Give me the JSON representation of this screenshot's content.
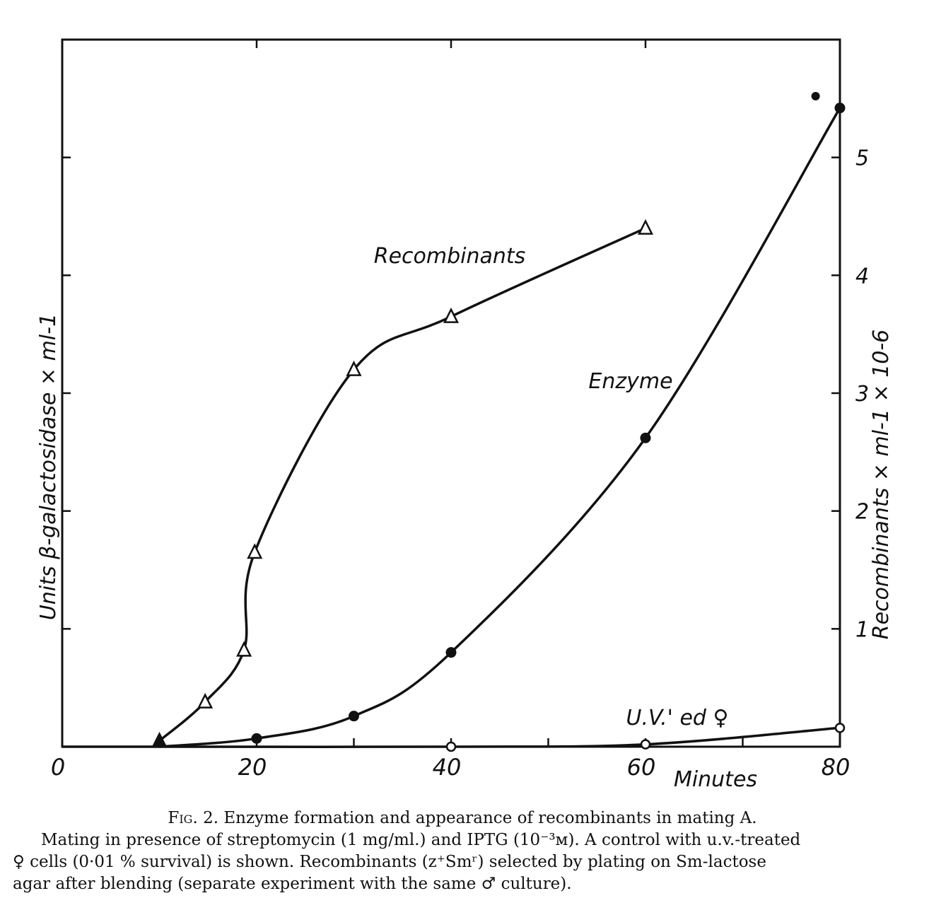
{
  "chart_data": {
    "type": "line",
    "x": [
      0,
      20,
      40,
      60,
      80
    ],
    "xlabel": "Minutes",
    "xlim": [
      0,
      80
    ],
    "ylabel_left": "Units β-galactosidase × ml-1",
    "ylabel_right": "Recombinants × ml-1 × 10-6",
    "ylim_right": [
      0,
      6
    ],
    "right_ticks": [
      "1",
      "2",
      "3",
      "4",
      "5"
    ],
    "x_ticks": [
      "0",
      "20",
      "40",
      "60",
      "80"
    ],
    "grid": false,
    "series": [
      {
        "name": "Recombinants",
        "marker": "open-triangle",
        "x": [
          10,
          14.7,
          18.7,
          19.8,
          30,
          40,
          60
        ],
        "y": [
          0.05,
          0.38,
          0.82,
          1.65,
          3.2,
          3.65,
          4.4
        ]
      },
      {
        "name": "Enzyme",
        "marker": "filled-circle",
        "x": [
          10,
          20,
          30,
          40,
          60,
          77.5,
          80
        ],
        "y": [
          0,
          0.07,
          0.26,
          0.8,
          2.62,
          5.52,
          5.42
        ]
      },
      {
        "name": "U.V.' ed ♀",
        "marker": "open-circle",
        "x": [
          10,
          40,
          60,
          80
        ],
        "y": [
          0,
          0,
          0.02,
          0.16
        ]
      }
    ]
  },
  "caption": {
    "title_prefix": "Fig. 2.",
    "title_text": " Enzyme formation and appearance of recombinants in mating A.",
    "line1": "Mating in presence of streptomycin (1 mg/ml.) and IPTG (10⁻³м). A control with u.v.-treated",
    "line2": "♀ cells (0·01 % survival) is shown. Recombinants (z⁺Smʳ) selected by plating on Sm-lactose",
    "line3": "agar after blending (separate experiment with the same ♂ culture)."
  }
}
